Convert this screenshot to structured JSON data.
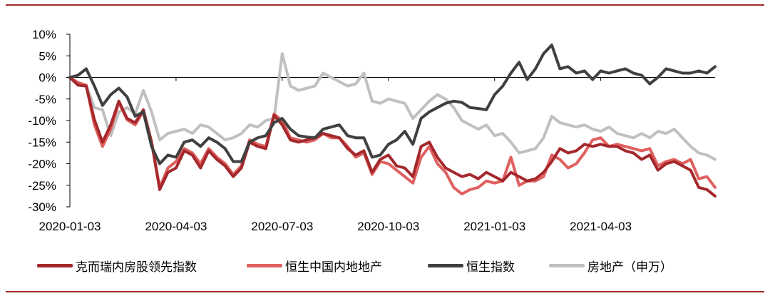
{
  "chart_data": {
    "type": "line",
    "title": "",
    "xlabel": "",
    "ylabel": "",
    "ylim": [
      -0.3,
      0.1
    ],
    "y_ticks": [
      "10%",
      "5%",
      "0%",
      "-5%",
      "-10%",
      "-15%",
      "-20%",
      "-25%",
      "-30%"
    ],
    "x_ticks": [
      "2020-01-03",
      "2020-04-03",
      "2020-07-03",
      "2020-10-03",
      "2021-01-03",
      "2021-04-03"
    ],
    "x_ticks_offsets_weeks": [
      0,
      13,
      26,
      39,
      52,
      65
    ],
    "series": [
      {
        "name": "克而瑞内房股领先指数",
        "color": "#a5282c",
        "values": [
          0,
          -0.018,
          -0.02,
          -0.098,
          -0.15,
          -0.11,
          -0.055,
          -0.095,
          -0.105,
          -0.075,
          -0.15,
          -0.26,
          -0.22,
          -0.21,
          -0.17,
          -0.18,
          -0.21,
          -0.17,
          -0.19,
          -0.205,
          -0.23,
          -0.21,
          -0.15,
          -0.16,
          -0.165,
          -0.088,
          -0.11,
          -0.145,
          -0.15,
          -0.145,
          -0.14,
          -0.13,
          -0.135,
          -0.14,
          -0.165,
          -0.18,
          -0.17,
          -0.22,
          -0.19,
          -0.18,
          -0.205,
          -0.21,
          -0.23,
          -0.16,
          -0.15,
          -0.185,
          -0.21,
          -0.22,
          -0.23,
          -0.225,
          -0.235,
          -0.22,
          -0.23,
          -0.24,
          -0.22,
          -0.23,
          -0.24,
          -0.235,
          -0.22,
          -0.195,
          -0.165,
          -0.175,
          -0.17,
          -0.155,
          -0.16,
          -0.155,
          -0.16,
          -0.16,
          -0.17,
          -0.175,
          -0.19,
          -0.18,
          -0.215,
          -0.2,
          -0.195,
          -0.205,
          -0.215,
          -0.255,
          -0.26,
          -0.275
        ]
      },
      {
        "name": "恒生中国内地地产",
        "color": "#e06060",
        "values": [
          0,
          -0.012,
          -0.018,
          -0.11,
          -0.16,
          -0.12,
          -0.058,
          -0.098,
          -0.11,
          -0.078,
          -0.15,
          -0.255,
          -0.21,
          -0.195,
          -0.165,
          -0.175,
          -0.2,
          -0.165,
          -0.185,
          -0.2,
          -0.225,
          -0.205,
          -0.145,
          -0.155,
          -0.16,
          -0.085,
          -0.1,
          -0.14,
          -0.145,
          -0.15,
          -0.145,
          -0.13,
          -0.14,
          -0.14,
          -0.16,
          -0.185,
          -0.175,
          -0.225,
          -0.195,
          -0.2,
          -0.215,
          -0.23,
          -0.245,
          -0.185,
          -0.16,
          -0.2,
          -0.22,
          -0.255,
          -0.27,
          -0.26,
          -0.255,
          -0.24,
          -0.245,
          -0.24,
          -0.185,
          -0.25,
          -0.24,
          -0.24,
          -0.23,
          -0.18,
          -0.19,
          -0.21,
          -0.2,
          -0.175,
          -0.145,
          -0.14,
          -0.16,
          -0.155,
          -0.16,
          -0.165,
          -0.17,
          -0.165,
          -0.205,
          -0.195,
          -0.19,
          -0.2,
          -0.19,
          -0.235,
          -0.23,
          -0.255
        ]
      },
      {
        "name": "恒生指数",
        "color": "#404040",
        "values": [
          0,
          0.005,
          0.02,
          -0.02,
          -0.065,
          -0.04,
          -0.025,
          -0.045,
          -0.09,
          -0.08,
          -0.16,
          -0.2,
          -0.18,
          -0.185,
          -0.15,
          -0.145,
          -0.16,
          -0.14,
          -0.15,
          -0.165,
          -0.195,
          -0.195,
          -0.15,
          -0.14,
          -0.135,
          -0.105,
          -0.095,
          -0.12,
          -0.135,
          -0.138,
          -0.14,
          -0.12,
          -0.115,
          -0.11,
          -0.135,
          -0.14,
          -0.14,
          -0.185,
          -0.18,
          -0.155,
          -0.145,
          -0.125,
          -0.155,
          -0.095,
          -0.08,
          -0.07,
          -0.06,
          -0.055,
          -0.058,
          -0.07,
          -0.072,
          -0.075,
          -0.04,
          -0.02,
          0.01,
          0.035,
          -0.005,
          0.02,
          0.055,
          0.075,
          0.02,
          0.025,
          0.01,
          0.015,
          -0.005,
          0.015,
          0.01,
          0.015,
          0.02,
          0.01,
          0.005,
          -0.015,
          0.0,
          0.02,
          0.015,
          0.01,
          0.01,
          0.015,
          0.01,
          0.025
        ]
      },
      {
        "name": "房地产（申万）",
        "color": "#c0c0c0",
        "values": [
          0,
          -0.012,
          -0.018,
          -0.07,
          -0.075,
          -0.135,
          -0.08,
          -0.07,
          -0.085,
          -0.03,
          -0.08,
          -0.145,
          -0.13,
          -0.125,
          -0.12,
          -0.13,
          -0.11,
          -0.115,
          -0.13,
          -0.145,
          -0.14,
          -0.13,
          -0.11,
          -0.115,
          -0.1,
          -0.095,
          0.055,
          -0.02,
          -0.03,
          -0.025,
          -0.02,
          0.01,
          0.0,
          -0.01,
          -0.02,
          -0.015,
          0.01,
          -0.055,
          -0.06,
          -0.05,
          -0.055,
          -0.06,
          -0.095,
          -0.075,
          -0.055,
          -0.04,
          -0.05,
          -0.07,
          -0.1,
          -0.11,
          -0.12,
          -0.11,
          -0.135,
          -0.13,
          -0.15,
          -0.175,
          -0.17,
          -0.165,
          -0.14,
          -0.09,
          -0.105,
          -0.11,
          -0.115,
          -0.11,
          -0.12,
          -0.125,
          -0.115,
          -0.13,
          -0.135,
          -0.14,
          -0.13,
          -0.14,
          -0.125,
          -0.13,
          -0.12,
          -0.14,
          -0.16,
          -0.175,
          -0.18,
          -0.19
        ]
      }
    ],
    "legend_position": "bottom",
    "grid": false
  }
}
